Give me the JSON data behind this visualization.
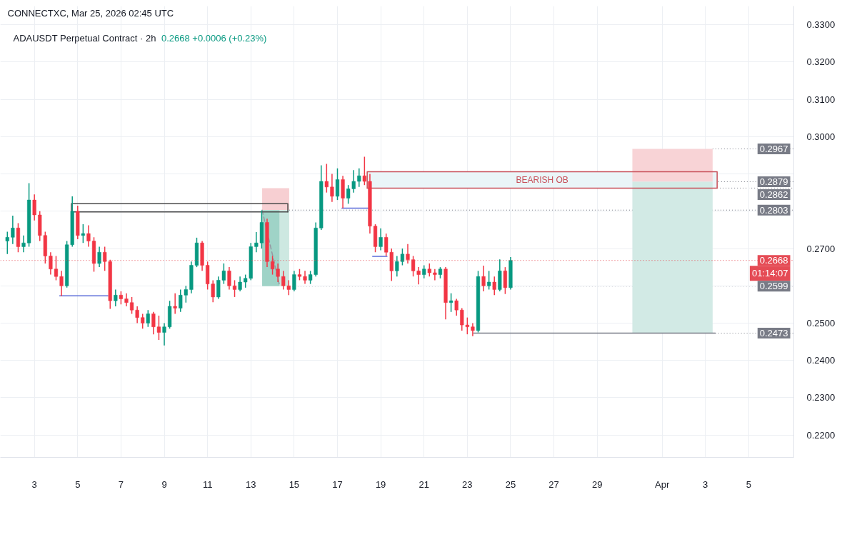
{
  "chart_data": {
    "type": "candlestick",
    "title": "CONNECTXC, Mar 25, 2026 02:45 UTC",
    "subtitle": "ADAUSDT Perpetual Contract · 2h",
    "x": [
      "2026-03-01T18:00",
      "2026-03-02T00:00",
      "2026-03-02T06:00",
      "2026-03-02T12:00",
      "2026-03-02T18:00",
      "2026-03-03T00:00",
      "2026-03-03T06:00",
      "2026-03-03T12:00",
      "2026-03-03T18:00",
      "2026-03-04T00:00",
      "2026-03-04T06:00",
      "2026-03-04T12:00",
      "2026-03-04T18:00",
      "2026-03-05T00:00",
      "2026-03-05T06:00",
      "2026-03-05T12:00",
      "2026-03-05T18:00",
      "2026-03-06T00:00",
      "2026-03-06T06:00",
      "2026-03-06T12:00",
      "2026-03-06T18:00",
      "2026-03-07T00:00",
      "2026-03-07T06:00",
      "2026-03-07T12:00",
      "2026-03-07T18:00",
      "2026-03-08T00:00",
      "2026-03-08T06:00",
      "2026-03-08T12:00",
      "2026-03-08T18:00",
      "2026-03-09T00:00",
      "2026-03-09T06:00",
      "2026-03-09T12:00",
      "2026-03-09T18:00",
      "2026-03-10T00:00",
      "2026-03-10T06:00",
      "2026-03-10T12:00",
      "2026-03-10T18:00",
      "2026-03-11T00:00",
      "2026-03-11T06:00",
      "2026-03-11T12:00",
      "2026-03-11T18:00",
      "2026-03-12T00:00",
      "2026-03-12T06:00",
      "2026-03-12T12:00",
      "2026-03-12T18:00",
      "2026-03-13T00:00",
      "2026-03-13T06:00",
      "2026-03-13T12:00",
      "2026-03-13T18:00",
      "2026-03-14T00:00",
      "2026-03-14T06:00",
      "2026-03-14T12:00",
      "2026-03-14T18:00",
      "2026-03-15T00:00",
      "2026-03-15T06:00",
      "2026-03-15T12:00",
      "2026-03-15T18:00",
      "2026-03-16T00:00",
      "2026-03-16T06:00",
      "2026-03-16T12:00",
      "2026-03-16T18:00",
      "2026-03-17T00:00",
      "2026-03-17T06:00",
      "2026-03-17T12:00",
      "2026-03-17T18:00",
      "2026-03-18T00:00",
      "2026-03-18T06:00",
      "2026-03-18T12:00",
      "2026-03-18T18:00",
      "2026-03-19T00:00",
      "2026-03-19T06:00",
      "2026-03-19T12:00",
      "2026-03-19T18:00",
      "2026-03-20T00:00",
      "2026-03-20T06:00",
      "2026-03-20T12:00",
      "2026-03-20T18:00",
      "2026-03-21T00:00",
      "2026-03-21T06:00",
      "2026-03-21T12:00",
      "2026-03-21T18:00",
      "2026-03-22T00:00",
      "2026-03-22T06:00",
      "2026-03-22T12:00",
      "2026-03-22T18:00",
      "2026-03-23T00:00",
      "2026-03-23T06:00",
      "2026-03-23T12:00",
      "2026-03-23T18:00",
      "2026-03-24T00:00",
      "2026-03-24T06:00",
      "2026-03-24T12:00",
      "2026-03-24T18:00",
      "2026-03-25T00:00"
    ],
    "ohlc": [
      [
        0.272,
        0.2745,
        0.2685,
        0.273
      ],
      [
        0.273,
        0.2788,
        0.2712,
        0.2755
      ],
      [
        0.2755,
        0.2768,
        0.269,
        0.2705
      ],
      [
        0.2705,
        0.2735,
        0.269,
        0.2715
      ],
      [
        0.2715,
        0.2875,
        0.2705,
        0.283
      ],
      [
        0.283,
        0.2845,
        0.2775,
        0.279
      ],
      [
        0.279,
        0.28,
        0.272,
        0.2735
      ],
      [
        0.2735,
        0.2745,
        0.266,
        0.268
      ],
      [
        0.268,
        0.269,
        0.263,
        0.2645
      ],
      [
        0.2645,
        0.268,
        0.2615,
        0.2625
      ],
      [
        0.2625,
        0.264,
        0.2572,
        0.26
      ],
      [
        0.26,
        0.272,
        0.2595,
        0.271
      ],
      [
        0.271,
        0.284,
        0.2705,
        0.28
      ],
      [
        0.28,
        0.2815,
        0.2725,
        0.2735
      ],
      [
        0.2735,
        0.2765,
        0.2715,
        0.274
      ],
      [
        0.274,
        0.2762,
        0.2705,
        0.272
      ],
      [
        0.272,
        0.273,
        0.2638,
        0.266
      ],
      [
        0.266,
        0.2705,
        0.265,
        0.269
      ],
      [
        0.269,
        0.2705,
        0.264,
        0.2665
      ],
      [
        0.2665,
        0.267,
        0.2538,
        0.256
      ],
      [
        0.256,
        0.259,
        0.2545,
        0.2575
      ],
      [
        0.2575,
        0.2585,
        0.255,
        0.2565
      ],
      [
        0.2565,
        0.258,
        0.2545,
        0.2555
      ],
      [
        0.2555,
        0.257,
        0.2525,
        0.2535
      ],
      [
        0.2535,
        0.2545,
        0.25,
        0.2515
      ],
      [
        0.2515,
        0.2525,
        0.2485,
        0.25
      ],
      [
        0.25,
        0.2535,
        0.249,
        0.2525
      ],
      [
        0.2525,
        0.253,
        0.247,
        0.249
      ],
      [
        0.249,
        0.252,
        0.2455,
        0.2475
      ],
      [
        0.2475,
        0.25,
        0.244,
        0.249
      ],
      [
        0.249,
        0.256,
        0.2485,
        0.2545
      ],
      [
        0.2545,
        0.258,
        0.2525,
        0.254
      ],
      [
        0.254,
        0.259,
        0.253,
        0.2575
      ],
      [
        0.2575,
        0.26,
        0.2555,
        0.259
      ],
      [
        0.259,
        0.2665,
        0.258,
        0.2655
      ],
      [
        0.2655,
        0.2729,
        0.265,
        0.2715
      ],
      [
        0.2715,
        0.272,
        0.264,
        0.2655
      ],
      [
        0.2655,
        0.2665,
        0.259,
        0.2605
      ],
      [
        0.2605,
        0.2615,
        0.2556,
        0.257
      ],
      [
        0.257,
        0.2625,
        0.2565,
        0.2615
      ],
      [
        0.2615,
        0.266,
        0.2605,
        0.264
      ],
      [
        0.264,
        0.265,
        0.259,
        0.26
      ],
      [
        0.26,
        0.2615,
        0.257,
        0.259
      ],
      [
        0.259,
        0.2625,
        0.2585,
        0.261
      ],
      [
        0.261,
        0.263,
        0.2595,
        0.262
      ],
      [
        0.262,
        0.2715,
        0.2615,
        0.2705
      ],
      [
        0.2705,
        0.2744,
        0.269,
        0.2715
      ],
      [
        0.2715,
        0.2802,
        0.27,
        0.277
      ],
      [
        0.277,
        0.278,
        0.265,
        0.2665
      ],
      [
        0.2665,
        0.268,
        0.263,
        0.2645
      ],
      [
        0.2645,
        0.266,
        0.261,
        0.2625
      ],
      [
        0.2625,
        0.264,
        0.259,
        0.26
      ],
      [
        0.26,
        0.2615,
        0.2575,
        0.259
      ],
      [
        0.259,
        0.264,
        0.2585,
        0.263
      ],
      [
        0.263,
        0.2645,
        0.2615,
        0.2625
      ],
      [
        0.2625,
        0.264,
        0.2605,
        0.2615
      ],
      [
        0.2615,
        0.264,
        0.2605,
        0.263
      ],
      [
        0.263,
        0.277,
        0.2625,
        0.2755
      ],
      [
        0.2755,
        0.2923,
        0.275,
        0.288
      ],
      [
        0.288,
        0.2927,
        0.285,
        0.2865
      ],
      [
        0.2865,
        0.29,
        0.2825,
        0.284
      ],
      [
        0.284,
        0.2915,
        0.283,
        0.2885
      ],
      [
        0.2885,
        0.2895,
        0.2808,
        0.2835
      ],
      [
        0.2835,
        0.287,
        0.282,
        0.286
      ],
      [
        0.286,
        0.291,
        0.285,
        0.288
      ],
      [
        0.288,
        0.2915,
        0.2865,
        0.2895
      ],
      [
        0.2895,
        0.2946,
        0.287,
        0.288
      ],
      [
        0.288,
        0.29,
        0.274,
        0.276
      ],
      [
        0.276,
        0.2765,
        0.269,
        0.2705
      ],
      [
        0.2705,
        0.2754,
        0.2695,
        0.273
      ],
      [
        0.273,
        0.274,
        0.268,
        0.269
      ],
      [
        0.269,
        0.27,
        0.2613,
        0.264
      ],
      [
        0.264,
        0.268,
        0.2625,
        0.2665
      ],
      [
        0.2665,
        0.27,
        0.2655,
        0.2685
      ],
      [
        0.2685,
        0.2712,
        0.266,
        0.267
      ],
      [
        0.267,
        0.268,
        0.2625,
        0.264
      ],
      [
        0.264,
        0.265,
        0.2604,
        0.263
      ],
      [
        0.263,
        0.2655,
        0.262,
        0.2645
      ],
      [
        0.2645,
        0.266,
        0.2625,
        0.2635
      ],
      [
        0.2635,
        0.2645,
        0.2615,
        0.263
      ],
      [
        0.263,
        0.265,
        0.262,
        0.2645
      ],
      [
        0.2645,
        0.265,
        0.251,
        0.2555
      ],
      [
        0.2555,
        0.258,
        0.253,
        0.256
      ],
      [
        0.256,
        0.2565,
        0.252,
        0.2535
      ],
      [
        0.2535,
        0.254,
        0.248,
        0.2495
      ],
      [
        0.2495,
        0.2515,
        0.247,
        0.249
      ],
      [
        0.249,
        0.25,
        0.2465,
        0.248
      ],
      [
        0.248,
        0.264,
        0.2475,
        0.2625
      ],
      [
        0.2625,
        0.2654,
        0.2585,
        0.26
      ],
      [
        0.26,
        0.264,
        0.259,
        0.261
      ],
      [
        0.261,
        0.2625,
        0.2575,
        0.259
      ],
      [
        0.259,
        0.2671,
        0.2585,
        0.264
      ],
      [
        0.264,
        0.265,
        0.2578,
        0.2595
      ],
      [
        0.2595,
        0.2677,
        0.259,
        0.2668
      ]
    ],
    "series": [
      {
        "type": "line",
        "color": "#eaf5f8",
        "x": [
          "2026-03-18T09:00",
          "2026-04-03T13:00"
        ],
        "values": [
          null,
          null
        ],
        "lower": [
          0.2862,
          0.2862
        ],
        "upper": [
          0.2906,
          0.2906
        ]
      },
      {
        "type": "line",
        "color": "#f8d3d6",
        "x": [
          "2026-03-30T15:00",
          "2026-04-03T08:00"
        ],
        "values": [
          null,
          null
        ],
        "lower": [
          0.2879,
          0.2879
        ],
        "upper": [
          0.2967,
          0.2967
        ]
      },
      {
        "type": "line",
        "color": "#d2eae5",
        "x": [
          "2026-03-30T15:00",
          "2026-04-03T08:00"
        ],
        "values": [
          null,
          null
        ],
        "lower": [
          0.2473,
          0.2473
        ],
        "upper": [
          0.2879,
          0.2879
        ]
      },
      {
        "type": "line",
        "color": "#f7cfd2",
        "x": [
          "2026-03-13T12:30",
          "2026-03-14T18:30"
        ],
        "values": [
          null,
          null
        ],
        "lower": [
          0.2803,
          0.2803
        ],
        "upper": [
          0.2862,
          0.2862
        ]
      },
      {
        "type": "line",
        "color": "#9fd3c7",
        "x": [
          "2026-03-13T12:30",
          "2026-03-14T08:00"
        ],
        "values": [
          null,
          null
        ],
        "lower": [
          0.2599,
          0.2599
        ],
        "upper": [
          0.2803,
          0.2803
        ]
      },
      {
        "type": "line",
        "color": "#cde8e1",
        "x": [
          "2026-03-14T08:00",
          "2026-03-14T18:30"
        ],
        "values": [
          null,
          null
        ],
        "lower": [
          0.2599,
          0.2599
        ],
        "upper": [
          0.2803,
          0.2803
        ]
      },
      {
        "type": "line",
        "color": "#9598a1",
        "line_style": "dashed",
        "x": [
          "2026-03-13T12:30",
          "2026-03-14T08:00"
        ],
        "values": [
          0.2803,
          0.2599
        ]
      },
      {
        "type": "line",
        "color": "#4a4a4a",
        "x": [
          "2026-03-04T17:00",
          "2026-03-04T17:00",
          "2026-03-14T17:00",
          "2026-03-14T17:00"
        ],
        "values": [
          0.2798,
          0.282,
          0.282,
          0.2798
        ]
      },
      {
        "type": "line",
        "color": "#4a4a4a",
        "x": [
          "2026-03-04T17:00",
          "2026-03-14T17:00"
        ],
        "values": [
          0.2798,
          0.2798
        ]
      },
      {
        "type": "line",
        "name": "BEARISH OB",
        "color": "#c8505a",
        "x": [
          "2026-03-18T09:00",
          "2026-03-18T09:00",
          "2026-04-03T13:00",
          "2026-04-03T13:00"
        ],
        "values": [
          0.2862,
          0.2906,
          0.2906,
          0.2862
        ]
      },
      {
        "type": "line",
        "color": "#c8505a",
        "x": [
          "2026-03-18T09:00",
          "2026-04-03T13:00"
        ],
        "values": [
          0.2862,
          0.2862
        ]
      },
      {
        "type": "line",
        "color": "#5b6cd9",
        "x": [
          "2026-03-04T04:00",
          "2026-03-06T09:30"
        ],
        "values": [
          0.2573,
          0.2573
        ]
      },
      {
        "type": "line",
        "color": "#5b6cd9",
        "x": [
          "2026-03-17T05:00",
          "2026-03-18T10:00"
        ],
        "values": [
          0.2808,
          0.2808
        ]
      },
      {
        "type": "line",
        "color": "#5b6cd9",
        "x": [
          "2026-03-18T15:00",
          "2026-03-19T07:00"
        ],
        "values": [
          0.2679,
          0.2679
        ]
      },
      {
        "type": "line",
        "color": "#787b86",
        "x": [
          "2026-03-23T07:00",
          "2026-04-03T11:00"
        ],
        "values": [
          0.2473,
          0.2473
        ]
      }
    ],
    "xlim": [
      "2026-03-01T10:15",
      "2026-04-07T02:00"
    ],
    "ylim": [
      0.214,
      0.335
    ],
    "xticks": [
      {
        "value": "2026-03-03",
        "label": "3"
      },
      {
        "value": "2026-03-05",
        "label": "5"
      },
      {
        "value": "2026-03-07",
        "label": "7"
      },
      {
        "value": "2026-03-09",
        "label": "9"
      },
      {
        "value": "2026-03-11",
        "label": "11"
      },
      {
        "value": "2026-03-13",
        "label": "13"
      },
      {
        "value": "2026-03-15",
        "label": "15"
      },
      {
        "value": "2026-03-17",
        "label": "17"
      },
      {
        "value": "2026-03-19",
        "label": "19"
      },
      {
        "value": "2026-03-21",
        "label": "21"
      },
      {
        "value": "2026-03-23",
        "label": "23"
      },
      {
        "value": "2026-03-25",
        "label": "25"
      },
      {
        "value": "2026-03-27",
        "label": "27"
      },
      {
        "value": "2026-03-29",
        "label": "29"
      },
      {
        "value": "2026-04-01",
        "label": "Apr"
      },
      {
        "value": "2026-04-03",
        "label": "3"
      },
      {
        "value": "2026-04-05",
        "label": "5"
      }
    ],
    "yticks": [
      {
        "value": 0.22,
        "label": "0.2200"
      },
      {
        "value": 0.23,
        "label": "0.2300"
      },
      {
        "value": 0.24,
        "label": "0.2400"
      },
      {
        "value": 0.25,
        "label": "0.2500"
      },
      {
        "value": 0.26,
        "label": null
      },
      {
        "value": 0.27,
        "label": "0.2700"
      },
      {
        "value": 0.28,
        "label": null
      },
      {
        "value": 0.29,
        "label": null
      },
      {
        "value": 0.3,
        "label": "0.3000"
      },
      {
        "value": 0.31,
        "label": "0.3100"
      },
      {
        "value": 0.32,
        "label": "0.3200"
      },
      {
        "value": 0.33,
        "label": "0.3300"
      }
    ],
    "grid": true,
    "ref_lines": [
      {
        "axis": "y",
        "value": 0.2668,
        "label": "0.2668",
        "color": "#e54b55",
        "line_style": "dotted"
      }
    ],
    "annotations": [
      "0.2668 +0.0006 (+0.23%)",
      {
        "text": "01:14:07",
        "y": 0.2668
      },
      {
        "text": "0.2967",
        "x": "2026-04-03T08:00",
        "y": 0.2967
      },
      {
        "text": "0.2879",
        "x": "2026-04-03T08:00",
        "y": 0.2879
      },
      {
        "text": "0.2862",
        "x": "2026-04-03T13:00",
        "y": 0.2862
      },
      {
        "text": "0.2803",
        "x": "2026-03-14T18:30",
        "y": 0.2803
      },
      {
        "text": "0.2599",
        "x": "2026-03-14T18:30",
        "y": 0.2599
      },
      {
        "text": "0.2473",
        "x": "2026-04-03T11:00",
        "y": 0.2473
      }
    ]
  }
}
